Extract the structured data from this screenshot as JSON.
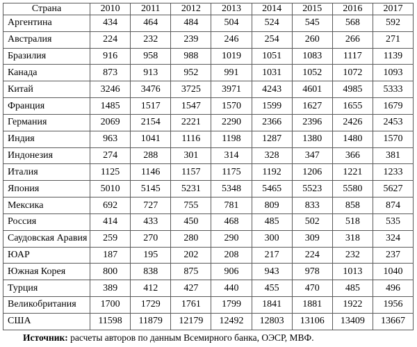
{
  "chart_data": {
    "type": "table",
    "columns": [
      "Страна",
      "2010",
      "2011",
      "2012",
      "2013",
      "2014",
      "2015",
      "2016",
      "2017"
    ],
    "rows": [
      [
        "Аргентина",
        434,
        464,
        484,
        504,
        524,
        545,
        568,
        592
      ],
      [
        "Австралия",
        224,
        232,
        239,
        246,
        254,
        260,
        266,
        271
      ],
      [
        "Бразилия",
        916,
        958,
        988,
        1019,
        1051,
        1083,
        1117,
        1139
      ],
      [
        "Канада",
        873,
        913,
        952,
        991,
        1031,
        1052,
        1072,
        1093
      ],
      [
        "Китай",
        3246,
        3476,
        3725,
        3971,
        4243,
        4601,
        4985,
        5333
      ],
      [
        "Франция",
        1485,
        1517,
        1547,
        1570,
        1599,
        1627,
        1655,
        1679
      ],
      [
        "Германия",
        2069,
        2154,
        2221,
        2290,
        2366,
        2396,
        2426,
        2453
      ],
      [
        "Индия",
        963,
        1041,
        1116,
        1198,
        1287,
        1380,
        1480,
        1570
      ],
      [
        "Индонезия",
        274,
        288,
        301,
        314,
        328,
        347,
        366,
        381
      ],
      [
        "Италия",
        1125,
        1146,
        1157,
        1175,
        1192,
        1206,
        1221,
        1233
      ],
      [
        "Япония",
        5010,
        5145,
        5231,
        5348,
        5465,
        5523,
        5580,
        5627
      ],
      [
        "Мексика",
        692,
        727,
        755,
        781,
        809,
        833,
        858,
        874
      ],
      [
        "Россия",
        414,
        433,
        450,
        468,
        485,
        502,
        518,
        535
      ],
      [
        "Саудовская Аравия",
        259,
        270,
        280,
        290,
        300,
        309,
        318,
        324
      ],
      [
        "ЮАР",
        187,
        195,
        202,
        208,
        217,
        224,
        232,
        237
      ],
      [
        "Южная Корея",
        800,
        838,
        875,
        906,
        943,
        978,
        1013,
        1040
      ],
      [
        "Турция",
        389,
        412,
        427,
        440,
        455,
        470,
        485,
        496
      ],
      [
        "Великобритания",
        1700,
        1729,
        1761,
        1799,
        1841,
        1881,
        1922,
        1956
      ],
      [
        "США",
        11598,
        11879,
        12179,
        12492,
        12803,
        13106,
        13409,
        13667
      ]
    ]
  },
  "footer": {
    "label": "Источник:",
    "text": "расчеты авторов по данным Всемирного банка, ОЭСР, МВФ."
  },
  "colors": {
    "border": "#595959",
    "text": "#000000",
    "background": "#ffffff"
  }
}
